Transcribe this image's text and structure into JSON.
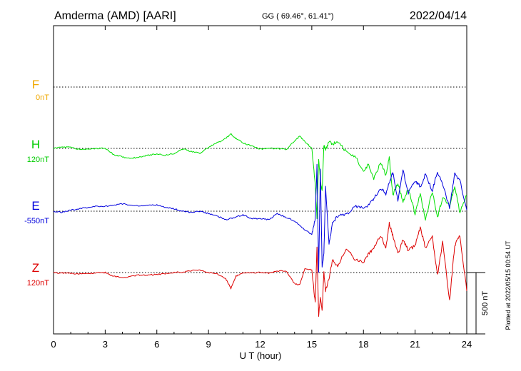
{
  "header": {
    "station": "Amderma (AMD)  [AARI]",
    "coords": "GG ( 69.46°,  61.41°)",
    "date": "2022/04/14"
  },
  "footer": {
    "plotted": "Plotted at 2022/05/15 00:54 UT"
  },
  "scale_bar": {
    "label": "500 nT",
    "value_nT": 500
  },
  "colors": {
    "F": "#f0a800",
    "H": "#00e000",
    "E": "#0000dd",
    "Z": "#dd0000",
    "axis": "#000000"
  },
  "chart_data": {
    "type": "line",
    "xlabel": "U T (hour)",
    "xlim": [
      0,
      24
    ],
    "xticks": [
      0,
      3,
      6,
      9,
      12,
      15,
      18,
      21,
      24
    ],
    "grid": "dotted baselines per channel",
    "series": [
      {
        "name": "F",
        "baseline_label": "0nT",
        "color": "#f0a800",
        "x": [],
        "y": []
      },
      {
        "name": "H",
        "baseline_label": "120nT",
        "color": "#00e000",
        "x": [
          0,
          0.5,
          1,
          1.5,
          2,
          2.5,
          3,
          3.5,
          4,
          4.5,
          5,
          5.5,
          6,
          6.5,
          7,
          7.5,
          8,
          8.5,
          9,
          9.5,
          10,
          10.3,
          10.6,
          11,
          11.5,
          12,
          12.5,
          13,
          13.5,
          14,
          14.3,
          14.6,
          15,
          15.2,
          15.3,
          15.4,
          15.5,
          15.6,
          15.7,
          15.8,
          16,
          16.2,
          16.5,
          17,
          17.5,
          18,
          18.3,
          18.6,
          19,
          19.3,
          19.5,
          19.7,
          20,
          20.3,
          20.6,
          21,
          21.3,
          21.6,
          22,
          22.3,
          22.6,
          23,
          23.3,
          23.6,
          24
        ],
        "y": [
          0,
          10,
          10,
          -10,
          -5,
          0,
          0,
          -50,
          -70,
          -80,
          -70,
          -55,
          -45,
          -55,
          -40,
          -5,
          -25,
          -40,
          10,
          45,
          80,
          120,
          80,
          45,
          20,
          -5,
          0,
          0,
          -10,
          60,
          100,
          55,
          0,
          -300,
          -560,
          -90,
          -260,
          -350,
          30,
          -20,
          60,
          30,
          60,
          -30,
          -60,
          -190,
          -130,
          -250,
          -110,
          -220,
          -70,
          -380,
          -280,
          -440,
          -330,
          -530,
          -370,
          -580,
          -350,
          -560,
          -400,
          -470,
          -310,
          -520,
          -380
        ]
      },
      {
        "name": "E",
        "baseline_label": "-550nT",
        "color": "#0000dd",
        "x": [
          0,
          0.5,
          1,
          1.5,
          2,
          2.5,
          3,
          3.5,
          4,
          4.5,
          5,
          5.5,
          6,
          6.5,
          7,
          7.5,
          8,
          8.5,
          9,
          9.5,
          10,
          10.5,
          11,
          11.5,
          12,
          12.5,
          13,
          13.5,
          14,
          14.5,
          15,
          15.2,
          15.3,
          15.4,
          15.5,
          15.6,
          15.7,
          15.8,
          16,
          16.2,
          16.5,
          17,
          17.5,
          18,
          18.3,
          18.6,
          19,
          19.3,
          19.5,
          19.7,
          20,
          20.3,
          20.6,
          21,
          21.3,
          21.6,
          22,
          22.3,
          22.6,
          23,
          23.3,
          23.6,
          24
        ],
        "y": [
          0,
          -10,
          10,
          20,
          30,
          40,
          40,
          50,
          60,
          50,
          40,
          50,
          50,
          30,
          20,
          0,
          -10,
          0,
          -20,
          -40,
          -70,
          -50,
          -30,
          -60,
          -60,
          -70,
          -20,
          -50,
          -80,
          -140,
          -190,
          -60,
          370,
          -500,
          350,
          -450,
          -350,
          200,
          -270,
          -100,
          -40,
          -30,
          40,
          30,
          50,
          100,
          190,
          140,
          230,
          320,
          80,
          330,
          150,
          250,
          200,
          300,
          170,
          320,
          220,
          30,
          300,
          250,
          10
        ]
      },
      {
        "name": "Z",
        "baseline_label": "120nT",
        "color": "#dd0000",
        "x": [
          0,
          0.5,
          1,
          1.5,
          2,
          2.5,
          3,
          3.5,
          4,
          4.5,
          5,
          5.5,
          6,
          6.5,
          7,
          7.5,
          8,
          8.5,
          9,
          9.5,
          10,
          10.3,
          10.6,
          11,
          11.5,
          12,
          12.5,
          13,
          13.5,
          14,
          14.3,
          14.6,
          15,
          15.2,
          15.3,
          15.4,
          15.5,
          15.6,
          15.7,
          15.8,
          16,
          16.2,
          16.5,
          17,
          17.5,
          18,
          18.3,
          18.6,
          19,
          19.3,
          19.5,
          19.7,
          20,
          20.3,
          20.6,
          21,
          21.3,
          21.6,
          22,
          22.3,
          22.6,
          23,
          23.3,
          23.6,
          24
        ],
        "y": [
          0,
          -5,
          -5,
          -10,
          -10,
          0,
          0,
          -30,
          -40,
          -30,
          -20,
          -20,
          -15,
          -10,
          0,
          5,
          15,
          20,
          0,
          -10,
          -50,
          -130,
          -30,
          0,
          0,
          0,
          -5,
          10,
          15,
          -90,
          -100,
          30,
          20,
          -250,
          210,
          -350,
          -200,
          -300,
          0,
          -150,
          -50,
          100,
          50,
          200,
          110,
          80,
          150,
          200,
          300,
          200,
          400,
          300,
          150,
          270,
          180,
          220,
          370,
          200,
          290,
          -20,
          250,
          -230,
          220,
          300,
          -150
        ]
      }
    ]
  }
}
